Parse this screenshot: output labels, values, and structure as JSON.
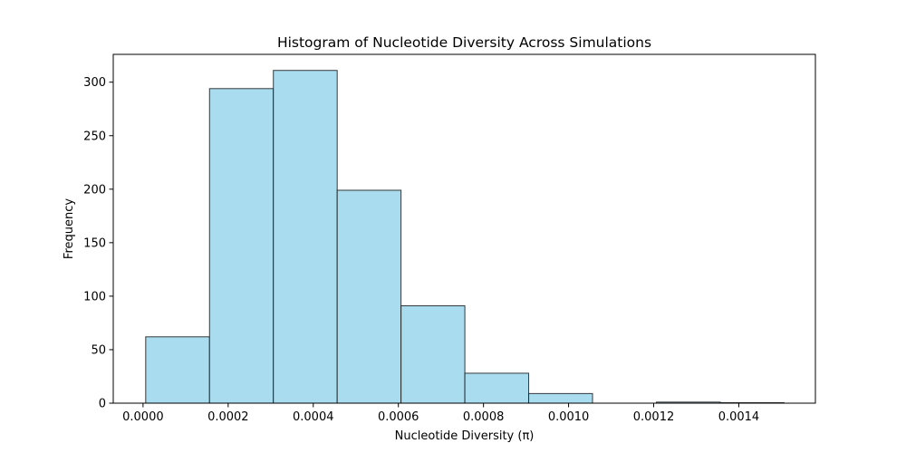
{
  "chart_data": {
    "type": "bar",
    "title": "Histogram of Nucleotide Diversity Across Simulations",
    "xlabel": "Nucleotide Diversity (π)",
    "ylabel": "Frequency",
    "xlim": [
      -7e-05,
      0.00158
    ],
    "ylim": [
      0,
      326
    ],
    "x_ticks": [
      "0.0000",
      "0.0002",
      "0.0004",
      "0.0006",
      "0.0008",
      "0.0010",
      "0.0012",
      "0.0014"
    ],
    "y_ticks": [
      "0",
      "50",
      "100",
      "150",
      "200",
      "250",
      "300"
    ],
    "bin_edges": [
      6.25e-06,
      0.00015625,
      0.00030625,
      0.00045625,
      0.00060625,
      0.00075625,
      0.00090625,
      0.00105625,
      0.00120625,
      0.00135625,
      0.00150625
    ],
    "values": [
      62,
      294,
      311,
      199,
      91,
      28,
      9,
      0,
      1,
      0.5
    ],
    "bar_color": "#a8dcee",
    "edge_color": "#1a1a1a",
    "grid": false,
    "legend": "none"
  }
}
